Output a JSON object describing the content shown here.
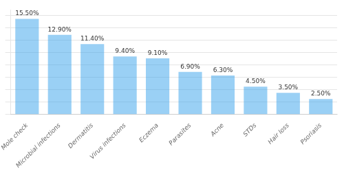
{
  "chart_data": {
    "type": "bar",
    "categories": [
      "Mole check",
      "Microbial infections",
      "Dermatitis",
      "Virus infections",
      "Eczema",
      "Parasites",
      "Acne",
      "STDs",
      "Hair loss",
      "Psoriasis"
    ],
    "values": [
      15.5,
      12.9,
      11.4,
      9.4,
      9.1,
      6.9,
      6.3,
      4.5,
      3.5,
      2.5
    ],
    "value_labels": [
      "15.50%",
      "12.90%",
      "11.40%",
      "9.40%",
      "9.10%",
      "6.90%",
      "6.30%",
      "4.50%",
      "3.50%",
      "2.50%"
    ],
    "data_labels": true,
    "ylim": [
      0,
      17
    ],
    "yticks": [
      0,
      2,
      4,
      6,
      8,
      10,
      12,
      14,
      16
    ],
    "grid": true,
    "tick_labels": "x"
  }
}
